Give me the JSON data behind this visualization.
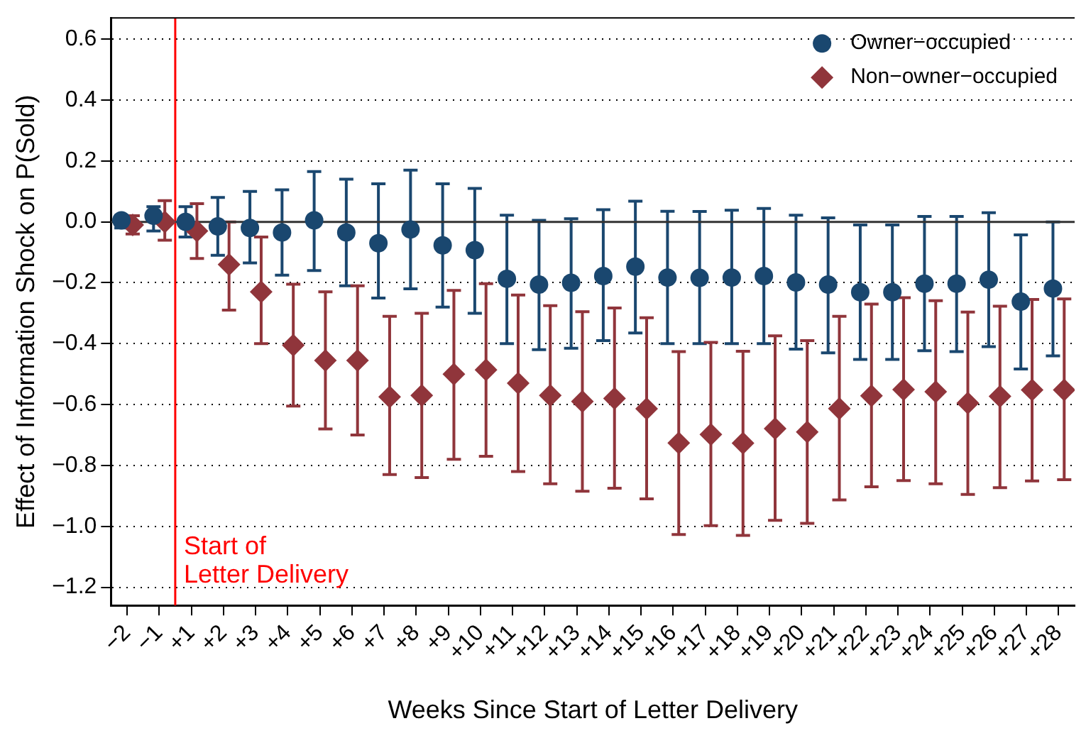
{
  "chart_data": {
    "type": "scatter",
    "xlabel": "Weeks Since Start of Letter Delivery",
    "ylabel": "Effect of Information Shock on P(Sold)",
    "categories": [
      "−2",
      "−1",
      "+1",
      "+2",
      "+3",
      "+4",
      "+5",
      "+6",
      "+7",
      "+8",
      "+9",
      "+10",
      "+11",
      "+12",
      "+13",
      "+14",
      "+15",
      "+16",
      "+17",
      "+18",
      "+19",
      "+20",
      "+21",
      "+22",
      "+23",
      "+24",
      "+25",
      "+26",
      "+27",
      "+28"
    ],
    "series": [
      {
        "name": "Owner−occupied",
        "color": "#1a476f",
        "marker": "circle",
        "values": [
          0.005,
          0.02,
          0.0,
          -0.015,
          -0.02,
          -0.035,
          0.005,
          -0.035,
          -0.07,
          -0.025,
          -0.077,
          -0.093,
          -0.187,
          -0.206,
          -0.2,
          -0.178,
          -0.147,
          -0.183,
          -0.184,
          -0.183,
          -0.178,
          -0.199,
          -0.206,
          -0.231,
          -0.231,
          -0.203,
          -0.203,
          -0.19,
          -0.262,
          -0.219
        ],
        "errors": [
          [
            -0.02,
            0.02
          ],
          [
            -0.03,
            0.05
          ],
          [
            -0.05,
            0.05
          ],
          [
            -0.11,
            0.08
          ],
          [
            -0.135,
            0.1
          ],
          [
            -0.175,
            0.105
          ],
          [
            -0.16,
            0.165
          ],
          [
            -0.21,
            0.14
          ],
          [
            -0.25,
            0.125
          ],
          [
            -0.22,
            0.17
          ],
          [
            -0.28,
            0.125
          ],
          [
            -0.3,
            0.11
          ],
          [
            -0.4,
            0.022
          ],
          [
            -0.42,
            0.005
          ],
          [
            -0.415,
            0.01
          ],
          [
            -0.39,
            0.04
          ],
          [
            -0.365,
            0.068
          ],
          [
            -0.4,
            0.035
          ],
          [
            -0.4,
            0.034
          ],
          [
            -0.4,
            0.038
          ],
          [
            -0.4,
            0.044
          ],
          [
            -0.418,
            0.022
          ],
          [
            -0.43,
            0.013
          ],
          [
            -0.452,
            -0.01
          ],
          [
            -0.452,
            -0.01
          ],
          [
            -0.423,
            0.018
          ],
          [
            -0.426,
            0.018
          ],
          [
            -0.41,
            0.03
          ],
          [
            -0.483,
            -0.043
          ],
          [
            -0.44,
            0.0
          ]
        ]
      },
      {
        "name": "Non−owner−occupied",
        "color": "#90353b",
        "marker": "diamond",
        "values": [
          -0.01,
          0.0,
          -0.03,
          -0.14,
          -0.23,
          -0.405,
          -0.455,
          -0.455,
          -0.575,
          -0.57,
          -0.5,
          -0.486,
          -0.53,
          -0.57,
          -0.59,
          -0.58,
          -0.614,
          -0.726,
          -0.698,
          -0.727,
          -0.679,
          -0.69,
          -0.613,
          -0.571,
          -0.551,
          -0.558,
          -0.595,
          -0.573,
          -0.552,
          -0.552
        ],
        "errors": [
          [
            -0.04,
            0.02
          ],
          [
            -0.06,
            0.07
          ],
          [
            -0.12,
            0.06
          ],
          [
            -0.29,
            0.0
          ],
          [
            -0.4,
            -0.05
          ],
          [
            -0.605,
            -0.205
          ],
          [
            -0.68,
            -0.23
          ],
          [
            -0.7,
            -0.21
          ],
          [
            -0.83,
            -0.31
          ],
          [
            -0.84,
            -0.3
          ],
          [
            -0.78,
            -0.225
          ],
          [
            -0.77,
            -0.203
          ],
          [
            -0.82,
            -0.24
          ],
          [
            -0.86,
            -0.275
          ],
          [
            -0.885,
            -0.295
          ],
          [
            -0.875,
            -0.283
          ],
          [
            -0.91,
            -0.315
          ],
          [
            -1.027,
            -0.426
          ],
          [
            -0.998,
            -0.396
          ],
          [
            -1.03,
            -0.425
          ],
          [
            -0.98,
            -0.374
          ],
          [
            -0.99,
            -0.39
          ],
          [
            -0.913,
            -0.31
          ],
          [
            -0.87,
            -0.27
          ],
          [
            -0.85,
            -0.249
          ],
          [
            -0.86,
            -0.259
          ],
          [
            -0.895,
            -0.296
          ],
          [
            -0.873,
            -0.277
          ],
          [
            -0.851,
            -0.255
          ],
          [
            -0.847,
            -0.253
          ]
        ]
      }
    ],
    "ylim": [
      -1.26,
      0.67
    ],
    "yticks": [
      {
        "value": -1.2,
        "label": "−1.2"
      },
      {
        "value": -1.0,
        "label": "−1.0"
      },
      {
        "value": -0.8,
        "label": "−0.8"
      },
      {
        "value": -0.6,
        "label": "−0.6"
      },
      {
        "value": -0.4,
        "label": "−0.4"
      },
      {
        "value": -0.2,
        "label": "−0.2"
      },
      {
        "value": 0,
        "label": "0.0"
      },
      {
        "value": 0.2,
        "label": "0.2"
      },
      {
        "value": 0.4,
        "label": "0.4"
      },
      {
        "value": 0.6,
        "label": "0.6"
      }
    ],
    "ref_lines": [
      {
        "axis": "x",
        "value": "+1",
        "label": "Start of\nLetter Delivery",
        "color": "#ff0000"
      },
      {
        "axis": "y",
        "value": 0,
        "color": "#333333"
      }
    ],
    "grid": "y",
    "legend": "top right"
  }
}
